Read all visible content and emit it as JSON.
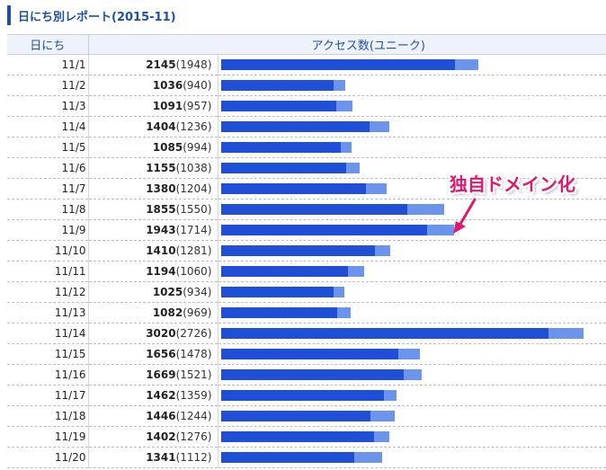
{
  "title": "日にち別レポート(2015-11)",
  "headers": {
    "date": "日にち",
    "access": "アクセス数(ユニーク)"
  },
  "scale_max": 3200,
  "colors": {
    "total_bar": "#6b95ec",
    "unique_bar": "#1f4fd7",
    "annotation": "#e0186e",
    "title": "#1f4fa8"
  },
  "rows": [
    {
      "date": "11/1",
      "total": 2145,
      "unique": 1948,
      "total_text": "2145",
      "unique_text": "(1948)"
    },
    {
      "date": "11/2",
      "total": 1036,
      "unique": 940,
      "total_text": "1036",
      "unique_text": "(940)"
    },
    {
      "date": "11/3",
      "total": 1091,
      "unique": 957,
      "total_text": "1091",
      "unique_text": "(957)"
    },
    {
      "date": "11/4",
      "total": 1404,
      "unique": 1236,
      "total_text": "1404",
      "unique_text": "(1236)"
    },
    {
      "date": "11/5",
      "total": 1085,
      "unique": 994,
      "total_text": "1085",
      "unique_text": "(994)"
    },
    {
      "date": "11/6",
      "total": 1155,
      "unique": 1038,
      "total_text": "1155",
      "unique_text": "(1038)"
    },
    {
      "date": "11/7",
      "total": 1380,
      "unique": 1204,
      "total_text": "1380",
      "unique_text": "(1204)"
    },
    {
      "date": "11/8",
      "total": 1855,
      "unique": 1550,
      "total_text": "1855",
      "unique_text": "(1550)"
    },
    {
      "date": "11/9",
      "total": 1943,
      "unique": 1714,
      "total_text": "1943",
      "unique_text": "(1714)"
    },
    {
      "date": "11/10",
      "total": 1410,
      "unique": 1281,
      "total_text": "1410",
      "unique_text": "(1281)"
    },
    {
      "date": "11/11",
      "total": 1194,
      "unique": 1060,
      "total_text": "1194",
      "unique_text": "(1060)"
    },
    {
      "date": "11/12",
      "total": 1025,
      "unique": 934,
      "total_text": "1025",
      "unique_text": "(934)"
    },
    {
      "date": "11/13",
      "total": 1082,
      "unique": 969,
      "total_text": "1082",
      "unique_text": "(969)"
    },
    {
      "date": "11/14",
      "total": 3020,
      "unique": 2726,
      "total_text": "3020",
      "unique_text": "(2726)"
    },
    {
      "date": "11/15",
      "total": 1656,
      "unique": 1478,
      "total_text": "1656",
      "unique_text": "(1478)"
    },
    {
      "date": "11/16",
      "total": 1669,
      "unique": 1521,
      "total_text": "1669",
      "unique_text": "(1521)"
    },
    {
      "date": "11/17",
      "total": 1462,
      "unique": 1359,
      "total_text": "1462",
      "unique_text": "(1359)"
    },
    {
      "date": "11/18",
      "total": 1446,
      "unique": 1244,
      "total_text": "1446",
      "unique_text": "(1244)"
    },
    {
      "date": "11/19",
      "total": 1402,
      "unique": 1276,
      "total_text": "1402",
      "unique_text": "(1276)"
    },
    {
      "date": "11/20",
      "total": 1341,
      "unique": 1112,
      "total_text": "1341",
      "unique_text": "(1112)"
    }
  ],
  "annotation": {
    "text": "独自ドメイン化",
    "target_date": "11/9"
  }
}
